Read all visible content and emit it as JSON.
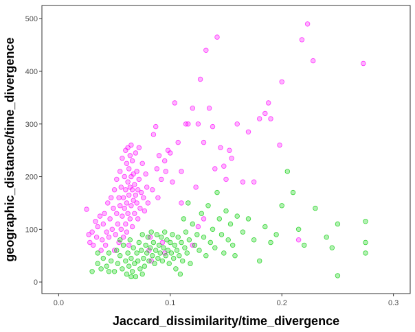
{
  "chart_data": {
    "type": "scatter",
    "xlabel": "Jaccard_dissimilarity/time_divergence",
    "ylabel": "geographic_distance/time_divergence",
    "xlim": [
      -0.015,
      0.315
    ],
    "ylim": [
      -22,
      525
    ],
    "x_ticks": [
      0.0,
      0.1,
      0.2,
      0.3
    ],
    "x_tick_labels": [
      "0.0",
      "0.1",
      "0.2",
      "0.3"
    ],
    "y_ticks": [
      0,
      100,
      200,
      300,
      400,
      500
    ],
    "y_tick_labels": [
      "0",
      "100",
      "200",
      "300",
      "400",
      "500"
    ],
    "grid": false,
    "legend": "none",
    "series": [
      {
        "color": "#ff00ff",
        "points": [
          [
            0.025,
            138
          ],
          [
            0.027,
            90
          ],
          [
            0.028,
            75
          ],
          [
            0.03,
            95
          ],
          [
            0.031,
            70
          ],
          [
            0.033,
            115
          ],
          [
            0.034,
            85
          ],
          [
            0.035,
            105
          ],
          [
            0.037,
            125
          ],
          [
            0.038,
            60
          ],
          [
            0.039,
            80
          ],
          [
            0.04,
            110
          ],
          [
            0.041,
            130
          ],
          [
            0.042,
            70
          ],
          [
            0.043,
            95
          ],
          [
            0.044,
            150
          ],
          [
            0.045,
            85
          ],
          [
            0.046,
            120
          ],
          [
            0.047,
            160
          ],
          [
            0.048,
            100
          ],
          [
            0.049,
            140
          ],
          [
            0.05,
            175
          ],
          [
            0.05,
            60
          ],
          [
            0.051,
            90
          ],
          [
            0.052,
            130
          ],
          [
            0.052,
            195
          ],
          [
            0.053,
            110
          ],
          [
            0.054,
            160
          ],
          [
            0.054,
            75
          ],
          [
            0.055,
            145
          ],
          [
            0.055,
            210
          ],
          [
            0.056,
            100
          ],
          [
            0.056,
            180
          ],
          [
            0.057,
            125
          ],
          [
            0.057,
            235
          ],
          [
            0.058,
            160
          ],
          [
            0.058,
            85
          ],
          [
            0.059,
            200
          ],
          [
            0.059,
            140
          ],
          [
            0.06,
            250
          ],
          [
            0.06,
            110
          ],
          [
            0.06,
            175
          ],
          [
            0.061,
            225
          ],
          [
            0.061,
            150
          ],
          [
            0.061,
            95
          ],
          [
            0.062,
            190
          ],
          [
            0.062,
            255
          ],
          [
            0.062,
            130
          ],
          [
            0.063,
            215
          ],
          [
            0.063,
            165
          ],
          [
            0.063,
            70
          ],
          [
            0.064,
            240
          ],
          [
            0.064,
            180
          ],
          [
            0.064,
            120
          ],
          [
            0.065,
            200
          ],
          [
            0.065,
            145
          ],
          [
            0.065,
            260
          ],
          [
            0.066,
            175
          ],
          [
            0.066,
            105
          ],
          [
            0.066,
            230
          ],
          [
            0.067,
            155
          ],
          [
            0.067,
            205
          ],
          [
            0.068,
            185
          ],
          [
            0.068,
            130
          ],
          [
            0.069,
            245
          ],
          [
            0.069,
            165
          ],
          [
            0.07,
            150
          ],
          [
            0.07,
            210
          ],
          [
            0.071,
            175
          ],
          [
            0.071,
            120
          ],
          [
            0.072,
            255
          ],
          [
            0.072,
            195
          ],
          [
            0.073,
            140
          ],
          [
            0.074,
            170
          ],
          [
            0.075,
            225
          ],
          [
            0.076,
            160
          ],
          [
            0.077,
            135
          ],
          [
            0.078,
            205
          ],
          [
            0.079,
            180
          ],
          [
            0.08,
            150
          ],
          [
            0.081,
            60
          ],
          [
            0.082,
            85
          ],
          [
            0.083,
            40
          ],
          [
            0.084,
            175
          ],
          [
            0.085,
            280
          ],
          [
            0.087,
            295
          ],
          [
            0.088,
            215
          ],
          [
            0.089,
            160
          ],
          [
            0.09,
            240
          ],
          [
            0.092,
            195
          ],
          [
            0.093,
            75
          ],
          [
            0.095,
            230
          ],
          [
            0.096,
            210
          ],
          [
            0.098,
            250
          ],
          [
            0.1,
            245
          ],
          [
            0.102,
            190
          ],
          [
            0.104,
            340
          ],
          [
            0.107,
            265
          ],
          [
            0.11,
            210
          ],
          [
            0.114,
            300
          ],
          [
            0.116,
            300
          ],
          [
            0.12,
            330
          ],
          [
            0.123,
            180
          ],
          [
            0.125,
            300
          ],
          [
            0.127,
            385
          ],
          [
            0.13,
            265
          ],
          [
            0.132,
            440
          ],
          [
            0.135,
            330
          ],
          [
            0.138,
            295
          ],
          [
            0.14,
            215
          ],
          [
            0.142,
            465
          ],
          [
            0.145,
            255
          ],
          [
            0.148,
            220
          ],
          [
            0.15,
            195
          ],
          [
            0.153,
            250
          ],
          [
            0.155,
            235
          ],
          [
            0.16,
            300
          ],
          [
            0.165,
            190
          ],
          [
            0.17,
            285
          ],
          [
            0.175,
            190
          ],
          [
            0.18,
            310
          ],
          [
            0.185,
            320
          ],
          [
            0.188,
            340
          ],
          [
            0.19,
            310
          ],
          [
            0.198,
            260
          ],
          [
            0.2,
            380
          ],
          [
            0.215,
            80
          ],
          [
            0.218,
            460
          ],
          [
            0.223,
            490
          ],
          [
            0.228,
            420
          ],
          [
            0.273,
            415
          ],
          [
            0.11,
            150
          ],
          [
            0.13,
            120
          ],
          [
            0.125,
            105
          ],
          [
            0.095,
            55
          ],
          [
            0.12,
            70
          ]
        ]
      },
      {
        "color": "#00cc00",
        "points": [
          [
            0.03,
            20
          ],
          [
            0.035,
            35
          ],
          [
            0.038,
            25
          ],
          [
            0.04,
            45
          ],
          [
            0.043,
            30
          ],
          [
            0.045,
            55
          ],
          [
            0.047,
            40
          ],
          [
            0.05,
            20
          ],
          [
            0.052,
            60
          ],
          [
            0.053,
            35
          ],
          [
            0.055,
            50
          ],
          [
            0.057,
            25
          ],
          [
            0.058,
            70
          ],
          [
            0.06,
            40
          ],
          [
            0.061,
            15
          ],
          [
            0.062,
            55
          ],
          [
            0.063,
            30
          ],
          [
            0.064,
            80
          ],
          [
            0.065,
            45
          ],
          [
            0.066,
            20
          ],
          [
            0.067,
            65
          ],
          [
            0.068,
            35
          ],
          [
            0.069,
            10
          ],
          [
            0.07,
            55
          ],
          [
            0.071,
            40
          ],
          [
            0.072,
            75
          ],
          [
            0.073,
            25
          ],
          [
            0.074,
            60
          ],
          [
            0.075,
            90
          ],
          [
            0.076,
            45
          ],
          [
            0.077,
            30
          ],
          [
            0.078,
            70
          ],
          [
            0.079,
            55
          ],
          [
            0.08,
            85
          ],
          [
            0.081,
            40
          ],
          [
            0.082,
            65
          ],
          [
            0.083,
            95
          ],
          [
            0.084,
            50
          ],
          [
            0.085,
            75
          ],
          [
            0.086,
            35
          ],
          [
            0.087,
            60
          ],
          [
            0.088,
            90
          ],
          [
            0.089,
            45
          ],
          [
            0.09,
            70
          ],
          [
            0.091,
            55
          ],
          [
            0.092,
            85
          ],
          [
            0.093,
            40
          ],
          [
            0.094,
            65
          ],
          [
            0.095,
            95
          ],
          [
            0.096,
            50
          ],
          [
            0.097,
            80
          ],
          [
            0.098,
            60
          ],
          [
            0.099,
            35
          ],
          [
            0.1,
            75
          ],
          [
            0.101,
            55
          ],
          [
            0.102,
            90
          ],
          [
            0.103,
            45
          ],
          [
            0.104,
            70
          ],
          [
            0.105,
            25
          ],
          [
            0.106,
            60
          ],
          [
            0.107,
            85
          ],
          [
            0.108,
            50
          ],
          [
            0.109,
            15
          ],
          [
            0.11,
            75
          ],
          [
            0.111,
            40
          ],
          [
            0.112,
            120
          ],
          [
            0.113,
            65
          ],
          [
            0.114,
            95
          ],
          [
            0.115,
            55
          ],
          [
            0.116,
            150
          ],
          [
            0.117,
            80
          ],
          [
            0.118,
            35
          ],
          [
            0.12,
            110
          ],
          [
            0.122,
            70
          ],
          [
            0.124,
            90
          ],
          [
            0.126,
            60
          ],
          [
            0.128,
            130
          ],
          [
            0.13,
            85
          ],
          [
            0.132,
            50
          ],
          [
            0.134,
            145
          ],
          [
            0.136,
            75
          ],
          [
            0.138,
            100
          ],
          [
            0.14,
            65
          ],
          [
            0.142,
            170
          ],
          [
            0.144,
            120
          ],
          [
            0.146,
            90
          ],
          [
            0.148,
            55
          ],
          [
            0.15,
            135
          ],
          [
            0.152,
            80
          ],
          [
            0.154,
            110
          ],
          [
            0.156,
            70
          ],
          [
            0.158,
            50
          ],
          [
            0.16,
            125
          ],
          [
            0.165,
            95
          ],
          [
            0.17,
            120
          ],
          [
            0.175,
            80
          ],
          [
            0.18,
            40
          ],
          [
            0.185,
            105
          ],
          [
            0.19,
            75
          ],
          [
            0.195,
            90
          ],
          [
            0.2,
            145
          ],
          [
            0.205,
            210
          ],
          [
            0.21,
            170
          ],
          [
            0.215,
            100
          ],
          [
            0.22,
            70
          ],
          [
            0.23,
            140
          ],
          [
            0.24,
            85
          ],
          [
            0.245,
            65
          ],
          [
            0.25,
            110
          ],
          [
            0.25,
            12
          ],
          [
            0.275,
            115
          ],
          [
            0.275,
            75
          ],
          [
            0.275,
            55
          ],
          [
            0.035,
            55
          ],
          [
            0.045,
            20
          ],
          [
            0.055,
            80
          ],
          [
            0.065,
            10
          ],
          [
            0.075,
            15
          ]
        ]
      }
    ]
  }
}
